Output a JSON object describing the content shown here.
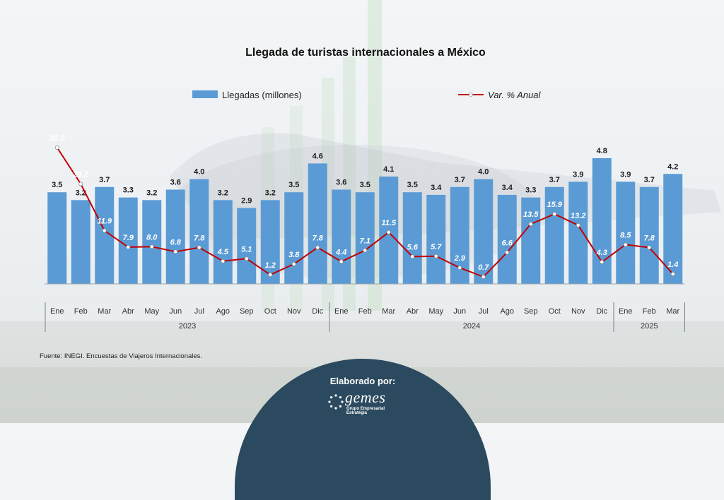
{
  "colors": {
    "bar": "#5b9bd5",
    "line": "#c00000",
    "badge": "#2c4a5f"
  },
  "chart_data": {
    "type": "bar",
    "title": "Llegada de turistas internacionales a México",
    "categories": [
      "Ene",
      "Feb",
      "Mar",
      "Abr",
      "May",
      "Jun",
      "Jul",
      "Ago",
      "Sep",
      "Oct",
      "Nov",
      "Dic",
      "Ene",
      "Feb",
      "Mar",
      "Abr",
      "May",
      "Jun",
      "Jul",
      "Ago",
      "Sep",
      "Oct",
      "Nov",
      "Dic",
      "Ene",
      "Feb",
      "Mar"
    ],
    "years": [
      {
        "label": "2023",
        "start": 0,
        "end": 11
      },
      {
        "label": "2024",
        "start": 12,
        "end": 23
      },
      {
        "label": "2025",
        "start": 24,
        "end": 26
      }
    ],
    "series": [
      {
        "name": "Llegadas (millones)",
        "type": "bar",
        "values": [
          3.5,
          3.2,
          3.7,
          3.3,
          3.2,
          3.6,
          4.0,
          3.2,
          2.9,
          3.2,
          3.5,
          4.6,
          3.6,
          3.5,
          4.1,
          3.5,
          3.4,
          3.7,
          4.0,
          3.4,
          3.3,
          3.7,
          3.9,
          4.8,
          3.9,
          3.7,
          4.2
        ],
        "labels": [
          "3.5",
          "3.2",
          "3.7",
          "3.3",
          "3.2",
          "3.6",
          "4.0",
          "3.2",
          "2.9",
          "3.2",
          "3.5",
          "4.6",
          "3.6",
          "3.5",
          "4.1",
          "3.5",
          "3.4",
          "3.7",
          "4.0",
          "3.4",
          "3.3",
          "3.7",
          "3.9",
          "4.8",
          "3.9",
          "3.7",
          "4.2"
        ]
      },
      {
        "name": "Var. % Anual",
        "type": "line",
        "values": [
          32.0,
          23.2,
          11.9,
          7.9,
          8.0,
          6.8,
          7.8,
          4.5,
          5.1,
          1.2,
          3.8,
          7.8,
          4.4,
          7.1,
          11.5,
          5.6,
          5.7,
          2.9,
          0.7,
          6.6,
          13.5,
          15.9,
          13.2,
          4.3,
          8.5,
          7.8,
          1.4
        ],
        "labels": [
          "32.0",
          "23.2",
          "11.9",
          "7.9",
          "8.0",
          "6.8",
          "7.8",
          "4.5",
          "5.1",
          "1.2",
          "3.8",
          "7.8",
          "4.4",
          "7.1",
          "11.5",
          "5.6",
          "5.7",
          "2.9",
          "0.7",
          "6.6",
          "13.5",
          "15.9",
          "13.2",
          "4.3",
          "8.5",
          "7.8",
          "1.4"
        ]
      }
    ],
    "bar_axis_max": 4.8,
    "line_axis_range": [
      0,
      35
    ],
    "legend_position": "top",
    "grid": false
  },
  "footer": {
    "source": "Fuente: INEGI. Encuestas de Viajeros Internacionales.",
    "badge_title": "Elaborado por:",
    "logo_word": "gemes",
    "logo_subtitle": "Grupo Empresarial Estratégia"
  }
}
